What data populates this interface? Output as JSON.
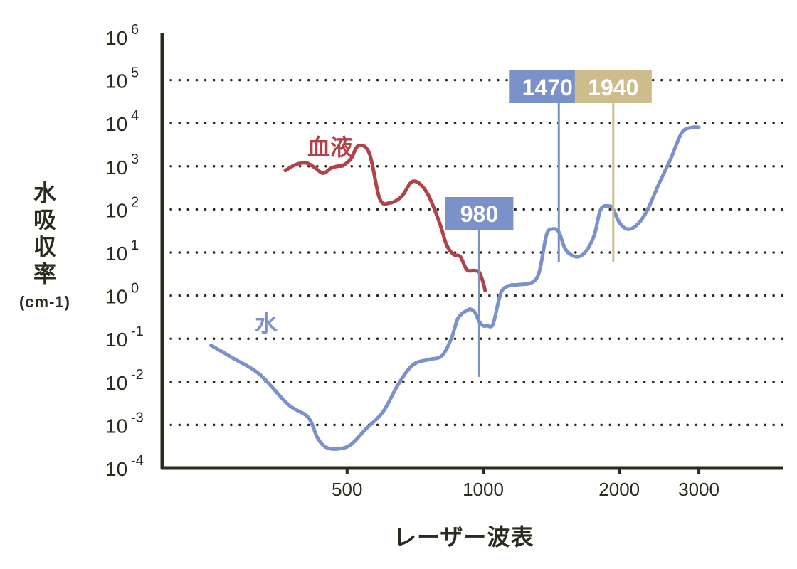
{
  "chart_data": {
    "type": "line",
    "xlabel": "レーザー波表",
    "ylabel": "水吸収率",
    "ylabel_unit": "(cm-1)",
    "x_scale": "log",
    "y_scale": "log",
    "xlim": [
      195,
      4600
    ],
    "ylim": [
      0.0001,
      1000000
    ],
    "grid": "dotted horizontal",
    "x_ticks": [
      {
        "value": 500,
        "label": "500"
      },
      {
        "value": 1000,
        "label": "1000"
      },
      {
        "value": 2000,
        "label": "2000"
      },
      {
        "value": 3000,
        "label": "3000"
      }
    ],
    "y_ticks": [
      {
        "value": 0.0001,
        "base": "10",
        "exp": "-4"
      },
      {
        "value": 0.001,
        "base": "10",
        "exp": "-3"
      },
      {
        "value": 0.01,
        "base": "10",
        "exp": "-2"
      },
      {
        "value": 0.1,
        "base": "10",
        "exp": "-1"
      },
      {
        "value": 1,
        "base": "10",
        "exp": "0"
      },
      {
        "value": 10,
        "base": "10",
        "exp": "1"
      },
      {
        "value": 100,
        "base": "10",
        "exp": "2"
      },
      {
        "value": 1000,
        "base": "10",
        "exp": "3"
      },
      {
        "value": 10000,
        "base": "10",
        "exp": "4"
      },
      {
        "value": 100000,
        "base": "10",
        "exp": "5"
      },
      {
        "value": 1000000,
        "base": "10",
        "exp": "6"
      }
    ],
    "series": [
      {
        "name": "血液",
        "color": "#b0434a",
        "x": [
          365,
          385,
          405,
          420,
          440,
          450,
          460,
          475,
          490,
          510,
          530,
          560,
          590,
          620,
          660,
          700,
          750,
          800,
          830,
          860,
          890,
          920,
          955,
          980,
          1000,
          1010
        ],
        "y": [
          800,
          1100,
          1200,
          1000,
          700,
          750,
          900,
          1000,
          1050,
          1500,
          3000,
          2000,
          180,
          140,
          200,
          450,
          250,
          50,
          15,
          9,
          8,
          4,
          3.8,
          3.5,
          2,
          1.3
        ]
      },
      {
        "name": "水",
        "color": "#7b91c9",
        "x": [
          250,
          280,
          320,
          370,
          410,
          430,
          450,
          480,
          510,
          550,
          600,
          650,
          700,
          760,
          810,
          850,
          880,
          920,
          940,
          960,
          980,
          1000,
          1020,
          1050,
          1080,
          1100,
          1140,
          1200,
          1280,
          1330,
          1380,
          1420,
          1470,
          1520,
          1600,
          1680,
          1760,
          1820,
          1900,
          1940,
          2000,
          2080,
          2180,
          2300,
          2450,
          2600,
          2750,
          2900,
          3000
        ],
        "y": [
          0.07,
          0.035,
          0.015,
          0.003,
          0.0015,
          0.0005,
          0.0003,
          0.00028,
          0.00035,
          0.0008,
          0.002,
          0.009,
          0.025,
          0.033,
          0.04,
          0.1,
          0.3,
          0.45,
          0.48,
          0.4,
          0.25,
          0.2,
          0.2,
          0.21,
          0.7,
          1.3,
          1.7,
          1.8,
          2,
          3.5,
          25,
          35,
          30,
          12,
          8,
          10,
          25,
          100,
          120,
          100,
          50,
          35,
          42,
          90,
          400,
          1500,
          6000,
          8000,
          8000
        ]
      }
    ],
    "annotations": [
      {
        "label": "980",
        "x": 980,
        "color": "#7b91c9",
        "line_from": 0.013,
        "line_to": 120
      },
      {
        "label": "1470",
        "x": 1470,
        "color": "#7b91c9",
        "line_from": 6,
        "line_to": 90000
      },
      {
        "label": "1940",
        "x": 1940,
        "color": "#cdbd8c",
        "line_from": 6,
        "line_to": 90000
      }
    ]
  }
}
